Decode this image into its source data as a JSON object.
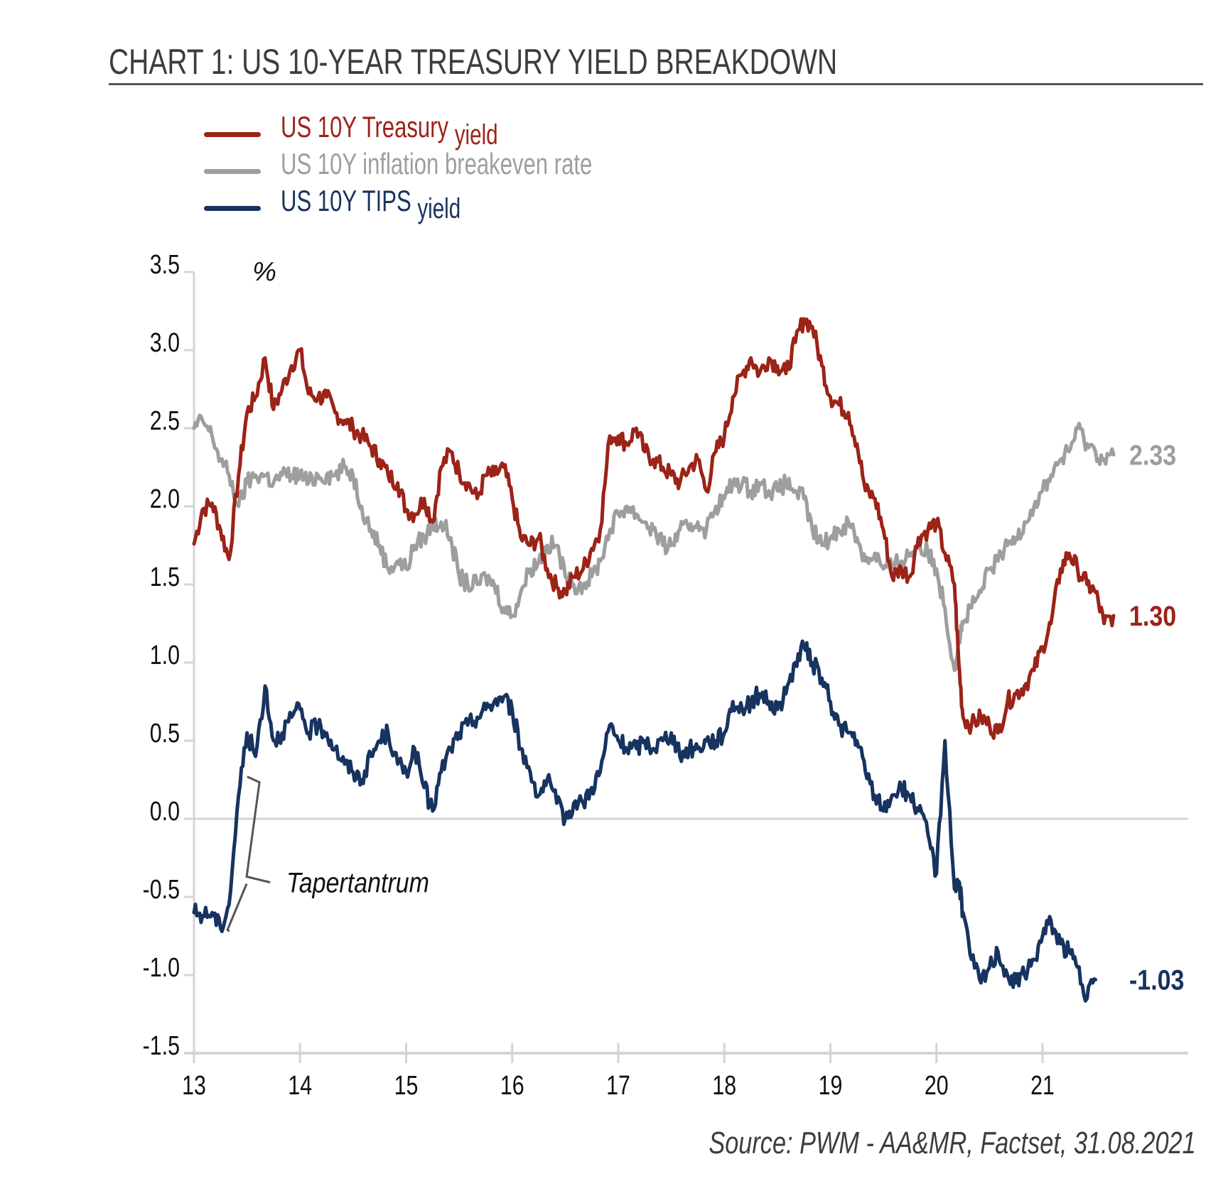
{
  "title": "CHART 1: US 10-YEAR TREASURY YIELD BREAKDOWN",
  "source": "Source: PWM - AA&MR, Factset, 31.08.2021",
  "chart_data": {
    "type": "line",
    "title": "CHART 1: US 10-YEAR TREASURY YIELD BREAKDOWN",
    "xlabel": "",
    "ylabel": "%",
    "ylim": [
      -1.5,
      3.5
    ],
    "xlim": [
      13,
      22.3
    ],
    "yticks": [
      "3.5",
      "3.0",
      "2.5",
      "2.0",
      "1.5",
      "1.0",
      "0.5",
      "0.0",
      "-0.5",
      "-1.0",
      "-1.5"
    ],
    "ytick_values": [
      3.5,
      3.0,
      2.5,
      2.0,
      1.5,
      1.0,
      0.5,
      0.0,
      -0.5,
      -1.0,
      -1.5
    ],
    "xticks": [
      "13",
      "14",
      "15",
      "16",
      "17",
      "18",
      "19",
      "20",
      "21"
    ],
    "xtick_values": [
      13,
      14,
      15,
      16,
      17,
      18,
      19,
      20,
      21
    ],
    "grid": false,
    "zero_line": true,
    "legend_position": "top-left",
    "legend": [
      {
        "label_main": "US 10Y Treasury",
        "label_tail": "yield",
        "color": "#9b2318"
      },
      {
        "label_main": "US 10Y inflation breakeven rate",
        "label_tail": "",
        "color": "#9e9e9e"
      },
      {
        "label_main": "US 10Y TIPS",
        "label_tail": "yield",
        "color": "#17335f"
      }
    ],
    "x": [
      13.0,
      13.08,
      13.17,
      13.25,
      13.33,
      13.42,
      13.5,
      13.58,
      13.67,
      13.75,
      13.83,
      13.92,
      14.0,
      14.08,
      14.17,
      14.25,
      14.33,
      14.42,
      14.5,
      14.58,
      14.67,
      14.75,
      14.83,
      14.92,
      15.0,
      15.08,
      15.17,
      15.25,
      15.33,
      15.42,
      15.5,
      15.58,
      15.67,
      15.75,
      15.83,
      15.92,
      16.0,
      16.08,
      16.17,
      16.25,
      16.33,
      16.42,
      16.5,
      16.58,
      16.67,
      16.75,
      16.83,
      16.92,
      17.0,
      17.08,
      17.17,
      17.25,
      17.33,
      17.42,
      17.5,
      17.58,
      17.67,
      17.75,
      17.83,
      17.92,
      18.0,
      18.08,
      18.17,
      18.25,
      18.33,
      18.42,
      18.5,
      18.58,
      18.67,
      18.75,
      18.83,
      18.92,
      19.0,
      19.08,
      19.17,
      19.25,
      19.33,
      19.42,
      19.5,
      19.58,
      19.67,
      19.75,
      19.83,
      19.92,
      20.0,
      20.08,
      20.17,
      20.21,
      20.25,
      20.33,
      20.42,
      20.5,
      20.58,
      20.67,
      20.75,
      20.83,
      20.92,
      21.0,
      21.08,
      21.17,
      21.25,
      21.33,
      21.42,
      21.5,
      21.58,
      21.67
    ],
    "series": [
      {
        "name": "US 10Y Treasury yield",
        "color": "#9b2318",
        "end_label": "1.30",
        "values": [
          1.76,
          1.98,
          2.02,
          1.85,
          1.66,
          2.2,
          2.6,
          2.7,
          2.95,
          2.62,
          2.75,
          2.9,
          3.0,
          2.72,
          2.7,
          2.7,
          2.6,
          2.55,
          2.5,
          2.45,
          2.38,
          2.3,
          2.2,
          2.15,
          1.98,
          1.95,
          2.05,
          1.9,
          2.25,
          2.35,
          2.22,
          2.15,
          2.05,
          2.2,
          2.2,
          2.25,
          2.05,
          1.8,
          1.75,
          1.8,
          1.6,
          1.48,
          1.45,
          1.55,
          1.6,
          1.73,
          1.85,
          2.45,
          2.45,
          2.4,
          2.5,
          2.35,
          2.3,
          2.25,
          2.2,
          2.15,
          2.25,
          2.3,
          2.1,
          2.35,
          2.45,
          2.7,
          2.85,
          2.95,
          2.85,
          2.95,
          2.9,
          2.85,
          3.05,
          3.2,
          3.15,
          2.9,
          2.7,
          2.65,
          2.6,
          2.4,
          2.1,
          2.05,
          1.85,
          1.55,
          1.6,
          1.55,
          1.8,
          1.85,
          1.9,
          1.7,
          1.5,
          1.0,
          0.65,
          0.6,
          0.65,
          0.6,
          0.55,
          0.75,
          0.8,
          0.85,
          0.95,
          1.1,
          1.25,
          1.6,
          1.7,
          1.6,
          1.5,
          1.45,
          1.25,
          1.3
        ]
      },
      {
        "name": "US 10Y inflation breakeven rate",
        "color": "#9e9e9e",
        "end_label": "2.33",
        "values": [
          2.5,
          2.55,
          2.45,
          2.3,
          2.2,
          2.0,
          2.15,
          2.2,
          2.2,
          2.15,
          2.2,
          2.2,
          2.2,
          2.15,
          2.2,
          2.2,
          2.2,
          2.25,
          2.2,
          2.0,
          1.85,
          1.75,
          1.6,
          1.65,
          1.6,
          1.75,
          1.8,
          1.88,
          1.9,
          1.8,
          1.55,
          1.5,
          1.5,
          1.55,
          1.5,
          1.35,
          1.3,
          1.45,
          1.6,
          1.65,
          1.75,
          1.75,
          1.55,
          1.5,
          1.5,
          1.55,
          1.65,
          1.85,
          1.95,
          2.0,
          1.95,
          1.9,
          1.85,
          1.75,
          1.75,
          1.85,
          1.85,
          1.9,
          1.85,
          2.0,
          2.05,
          2.15,
          2.15,
          2.1,
          2.15,
          2.1,
          2.1,
          2.15,
          2.1,
          2.05,
          1.85,
          1.75,
          1.8,
          1.85,
          1.9,
          1.8,
          1.65,
          1.7,
          1.6,
          1.62,
          1.65,
          1.7,
          1.75,
          1.7,
          1.6,
          1.35,
          0.95,
          1.15,
          1.25,
          1.35,
          1.45,
          1.6,
          1.65,
          1.75,
          1.8,
          1.9,
          2.0,
          2.1,
          2.2,
          2.3,
          2.35,
          2.5,
          2.4,
          2.35,
          2.3,
          2.33
        ]
      },
      {
        "name": "US 10Y TIPS yield",
        "color": "#17335f",
        "end_label": "-1.03",
        "values": [
          -0.6,
          -0.62,
          -0.6,
          -0.7,
          -0.55,
          0.15,
          0.55,
          0.4,
          0.85,
          0.5,
          0.55,
          0.65,
          0.7,
          0.55,
          0.6,
          0.55,
          0.45,
          0.35,
          0.3,
          0.25,
          0.4,
          0.5,
          0.55,
          0.35,
          0.3,
          0.45,
          0.2,
          0.05,
          0.3,
          0.45,
          0.55,
          0.6,
          0.65,
          0.7,
          0.75,
          0.78,
          0.7,
          0.45,
          0.3,
          0.15,
          0.25,
          0.1,
          0.0,
          0.1,
          0.1,
          0.2,
          0.3,
          0.6,
          0.5,
          0.45,
          0.45,
          0.5,
          0.45,
          0.5,
          0.55,
          0.4,
          0.45,
          0.45,
          0.5,
          0.5,
          0.55,
          0.75,
          0.7,
          0.75,
          0.8,
          0.75,
          0.7,
          0.8,
          1.0,
          1.1,
          1.0,
          0.9,
          0.75,
          0.6,
          0.55,
          0.5,
          0.3,
          0.15,
          0.05,
          0.15,
          0.2,
          0.15,
          0.05,
          -0.1,
          -0.35,
          0.5,
          -0.45,
          -0.4,
          -0.6,
          -0.9,
          -1.05,
          -0.95,
          -0.85,
          -1.0,
          -1.05,
          -1.0,
          -0.9,
          -0.75,
          -0.65,
          -0.8,
          -0.85,
          -0.95,
          -1.15,
          -1.03
        ]
      }
    ],
    "annotations": [
      {
        "text": "Tapertantrum",
        "x_range": [
          13.3,
          13.55
        ],
        "y_range": [
          -0.72,
          0.27
        ]
      }
    ]
  }
}
